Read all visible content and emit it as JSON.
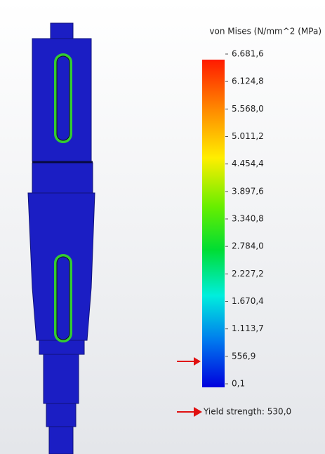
{
  "legend": {
    "title": "von Mises (N/mm^2 (MPa)",
    "ticks": [
      "6.681,6",
      "6.124,8",
      "5.568,0",
      "5.011,2",
      "4.454,4",
      "3.897,6",
      "3.340,8",
      "2.784,0",
      "2.227,2",
      "1.670,4",
      "1.113,7",
      "556,9",
      "0,1"
    ]
  },
  "yield_label": "Yield strength: 530,0"
}
